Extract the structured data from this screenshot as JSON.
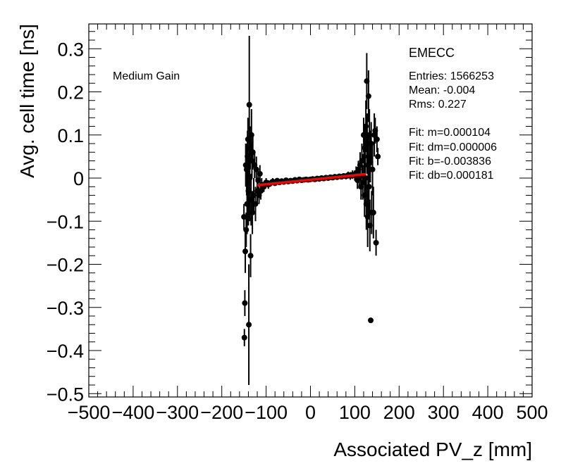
{
  "chart_data": {
    "type": "scatter",
    "title": "",
    "xlabel": "Associated PV_z [mm]",
    "ylabel": "Avg. cell time [ns]",
    "xlim": [
      -500,
      500
    ],
    "ylim": [
      -0.52,
      0.37
    ],
    "x_ticks": [
      -500,
      -400,
      -300,
      -200,
      -100,
      0,
      100,
      200,
      300,
      400,
      500
    ],
    "x_tick_labels": [
      "−500",
      "−400",
      "−300",
      "−200",
      "−100",
      "0",
      "100",
      "200",
      "300",
      "400",
      "500"
    ],
    "y_ticks": [
      0.3,
      0.2,
      0.1,
      0,
      -0.1,
      -0.2,
      -0.3,
      -0.4,
      -0.5
    ],
    "y_tick_labels": [
      "0.3",
      "0.2",
      "0.1",
      "0",
      "−0.1",
      "−0.2",
      "−0.3",
      "−0.4",
      "−0.5"
    ],
    "gain_label": "Medium Gain",
    "stats": {
      "name": "EMECC",
      "entries": "Entries: 1566253",
      "mean": "Mean: -0.004",
      "rms": "Rms: 0.227",
      "fit_m": "Fit: m=0.000104",
      "fit_dm": "Fit: dm=0.000006",
      "fit_b": "Fit: b=-0.003836",
      "fit_db": "Fit: db=0.000181"
    },
    "fit_line": {
      "slope": 0.000104,
      "intercept": -0.003836,
      "x_range": [
        -120,
        125
      ],
      "color": "#ff0000"
    },
    "series": [
      {
        "name": "data",
        "color": "#000000",
        "points": [
          {
            "x": -150,
            "y": -0.09,
            "err": 0.03
          },
          {
            "x": -149,
            "y": -0.37,
            "err": 0.02
          },
          {
            "x": -148,
            "y": -0.29,
            "err": 0.03
          },
          {
            "x": -147,
            "y": -0.17,
            "err": 0.05
          },
          {
            "x": -146,
            "y": 0.03,
            "err": 0.05
          },
          {
            "x": -145,
            "y": -0.12,
            "err": 0.04
          },
          {
            "x": -144,
            "y": 0.02,
            "err": 0.06
          },
          {
            "x": -143,
            "y": -0.06,
            "err": 0.07
          },
          {
            "x": -142,
            "y": 0.05,
            "err": 0.06
          },
          {
            "x": -141,
            "y": 0.09,
            "err": 0.05
          },
          {
            "x": -140,
            "y": -0.03,
            "err": 0.08
          },
          {
            "x": -139,
            "y": -0.34,
            "err": 0.14
          },
          {
            "x": -138,
            "y": 0.17,
            "err": 0.16
          },
          {
            "x": -137,
            "y": 0.0,
            "err": 0.1
          },
          {
            "x": -136,
            "y": 0.07,
            "err": 0.05
          },
          {
            "x": -135,
            "y": -0.18,
            "err": 0.05
          },
          {
            "x": -134,
            "y": -0.05,
            "err": 0.06
          },
          {
            "x": -133,
            "y": 0.1,
            "err": 0.06
          },
          {
            "x": -132,
            "y": 0.04,
            "err": 0.04
          },
          {
            "x": -131,
            "y": -0.08,
            "err": 0.05
          },
          {
            "x": -130,
            "y": 0.06,
            "err": 0.04
          },
          {
            "x": -128,
            "y": -0.04,
            "err": 0.04
          },
          {
            "x": -126,
            "y": 0.03,
            "err": 0.03
          },
          {
            "x": -124,
            "y": -0.06,
            "err": 0.04
          },
          {
            "x": -122,
            "y": 0.02,
            "err": 0.03
          },
          {
            "x": -120,
            "y": -0.03,
            "err": 0.03
          },
          {
            "x": -118,
            "y": -0.005,
            "err": 0.02
          },
          {
            "x": -116,
            "y": -0.04,
            "err": 0.02
          },
          {
            "x": -114,
            "y": 0.01,
            "err": 0.02
          },
          {
            "x": -112,
            "y": -0.03,
            "err": 0.02
          },
          {
            "x": -110,
            "y": -0.015,
            "err": 0.015
          },
          {
            "x": -105,
            "y": -0.02,
            "err": 0.012
          },
          {
            "x": -100,
            "y": -0.01,
            "err": 0.01
          },
          {
            "x": -95,
            "y": -0.015,
            "err": 0.01
          },
          {
            "x": -90,
            "y": -0.012,
            "err": 0.008
          },
          {
            "x": -85,
            "y": -0.008,
            "err": 0.008
          },
          {
            "x": -80,
            "y": -0.012,
            "err": 0.006
          },
          {
            "x": -75,
            "y": -0.006,
            "err": 0.006
          },
          {
            "x": -70,
            "y": -0.01,
            "err": 0.005
          },
          {
            "x": -65,
            "y": -0.007,
            "err": 0.005
          },
          {
            "x": -60,
            "y": -0.009,
            "err": 0.004
          },
          {
            "x": -55,
            "y": -0.005,
            "err": 0.004
          },
          {
            "x": -50,
            "y": -0.008,
            "err": 0.004
          },
          {
            "x": -45,
            "y": -0.006,
            "err": 0.003
          },
          {
            "x": -40,
            "y": -0.007,
            "err": 0.003
          },
          {
            "x": -35,
            "y": -0.004,
            "err": 0.003
          },
          {
            "x": -30,
            "y": -0.006,
            "err": 0.003
          },
          {
            "x": -25,
            "y": -0.003,
            "err": 0.003
          },
          {
            "x": -20,
            "y": -0.005,
            "err": 0.003
          },
          {
            "x": -15,
            "y": -0.004,
            "err": 0.003
          },
          {
            "x": -10,
            "y": -0.003,
            "err": 0.003
          },
          {
            "x": -5,
            "y": -0.004,
            "err": 0.003
          },
          {
            "x": 0,
            "y": -0.003,
            "err": 0.003
          },
          {
            "x": 5,
            "y": -0.002,
            "err": 0.003
          },
          {
            "x": 10,
            "y": -0.003,
            "err": 0.003
          },
          {
            "x": 15,
            "y": -0.001,
            "err": 0.003
          },
          {
            "x": 20,
            "y": -0.002,
            "err": 0.003
          },
          {
            "x": 25,
            "y": 0.0,
            "err": 0.003
          },
          {
            "x": 30,
            "y": -0.001,
            "err": 0.003
          },
          {
            "x": 35,
            "y": 0.001,
            "err": 0.003
          },
          {
            "x": 40,
            "y": 0.0,
            "err": 0.004
          },
          {
            "x": 45,
            "y": 0.002,
            "err": 0.004
          },
          {
            "x": 50,
            "y": 0.001,
            "err": 0.004
          },
          {
            "x": 55,
            "y": 0.003,
            "err": 0.004
          },
          {
            "x": 60,
            "y": 0.002,
            "err": 0.005
          },
          {
            "x": 65,
            "y": 0.004,
            "err": 0.005
          },
          {
            "x": 70,
            "y": 0.003,
            "err": 0.006
          },
          {
            "x": 75,
            "y": 0.005,
            "err": 0.006
          },
          {
            "x": 80,
            "y": 0.004,
            "err": 0.007
          },
          {
            "x": 85,
            "y": 0.007,
            "err": 0.008
          },
          {
            "x": 90,
            "y": 0.005,
            "err": 0.009
          },
          {
            "x": 95,
            "y": 0.008,
            "err": 0.01
          },
          {
            "x": 100,
            "y": 0.006,
            "err": 0.012
          },
          {
            "x": 103,
            "y": 0.012,
            "err": 0.015
          },
          {
            "x": 106,
            "y": -0.005,
            "err": 0.02
          },
          {
            "x": 108,
            "y": 0.02,
            "err": 0.02
          },
          {
            "x": 110,
            "y": 0.0,
            "err": 0.025
          },
          {
            "x": 112,
            "y": 0.03,
            "err": 0.03
          },
          {
            "x": 114,
            "y": -0.02,
            "err": 0.03
          },
          {
            "x": 116,
            "y": 0.04,
            "err": 0.04
          },
          {
            "x": 118,
            "y": -0.01,
            "err": 0.04
          },
          {
            "x": 120,
            "y": 0.1,
            "err": 0.04
          },
          {
            "x": 121,
            "y": 0.05,
            "err": 0.05
          },
          {
            "x": 122,
            "y": -0.04,
            "err": 0.05
          },
          {
            "x": 123,
            "y": 0.07,
            "err": 0.05
          },
          {
            "x": 124,
            "y": 0.0,
            "err": 0.06
          },
          {
            "x": 125,
            "y": 0.12,
            "err": 0.06
          },
          {
            "x": 126,
            "y": -0.06,
            "err": 0.06
          },
          {
            "x": 127,
            "y": 0.225,
            "err": 0.065
          },
          {
            "x": 128,
            "y": 0.08,
            "err": 0.07
          },
          {
            "x": 129,
            "y": -0.09,
            "err": 0.07
          },
          {
            "x": 130,
            "y": 0.03,
            "err": 0.07
          },
          {
            "x": 131,
            "y": 0.19,
            "err": 0.06
          },
          {
            "x": 132,
            "y": -0.02,
            "err": 0.07
          },
          {
            "x": 133,
            "y": 0.1,
            "err": 0.06
          },
          {
            "x": 134,
            "y": -0.11,
            "err": 0.06
          },
          {
            "x": 135,
            "y": 0.05,
            "err": 0.06
          },
          {
            "x": 136,
            "y": -0.33,
            "err": 0.0
          },
          {
            "x": 137,
            "y": 0.08,
            "err": 0.05
          },
          {
            "x": 138,
            "y": -0.08,
            "err": 0.05
          },
          {
            "x": 140,
            "y": 0.02,
            "err": 0.06
          },
          {
            "x": 142,
            "y": -0.08,
            "err": 0.06
          },
          {
            "x": 144,
            "y": 0.1,
            "err": 0.05
          },
          {
            "x": 146,
            "y": 0.11,
            "err": 0.03
          },
          {
            "x": 148,
            "y": -0.15,
            "err": 0.03
          },
          {
            "x": 150,
            "y": 0.09,
            "err": 0.03
          },
          {
            "x": 152,
            "y": 0.05,
            "err": 0.02
          }
        ]
      }
    ]
  }
}
